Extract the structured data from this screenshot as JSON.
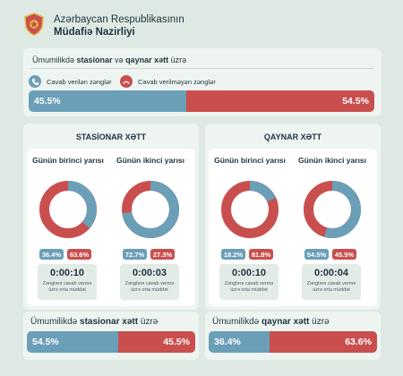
{
  "header": {
    "line1": "Azərbaycan Respublikasının",
    "line2": "Müdafiə Nazirliyi"
  },
  "colors": {
    "blue": "#6b9fb8",
    "red": "#c94f4f",
    "text": "#1f3340"
  },
  "overall": {
    "title_prefix": "Ümumilikdə ",
    "title_bold1": "stasionar",
    "title_mid": " və ",
    "title_bold2": "qaynar xətt",
    "title_suffix": " üzrə",
    "legend_answered": "Cavab verilən zənglər",
    "legend_unanswered": "Cavab verilməyən zənglər",
    "answered_pct": "45.5%",
    "unanswered_pct": "54.5%",
    "answered_value": 45.5,
    "unanswered_value": 54.5
  },
  "stationary": {
    "title": "STASİONAR XƏTT",
    "first": {
      "title": "Günün birinci yarısı",
      "blue_pct": "36.4%",
      "red_pct": "63.6%",
      "blue_value": 36.4,
      "time": "0:00:10",
      "time_label": "Zənglərə cavab vermə üzrə orta müddət"
    },
    "second": {
      "title": "Günün ikinci yarısı",
      "blue_pct": "72.7%",
      "red_pct": "27.3%",
      "blue_value": 72.7,
      "time": "0:00:03",
      "time_label": "Zənglərə cavab vermə üzrə orta müddət"
    }
  },
  "hotline": {
    "title": "QAYNAR XƏTT",
    "first": {
      "title": "Günün birinci yarısı",
      "blue_pct": "18.2%",
      "red_pct": "81.8%",
      "blue_value": 18.2,
      "time": "0:00:10",
      "time_label": "Zənglərə cavab vermə üzrə orta müddət"
    },
    "second": {
      "title": "Günün ikinci yarısı",
      "blue_pct": "54.5%",
      "red_pct": "45.5%",
      "blue_value": 54.5,
      "time": "0:00:04",
      "time_label": "Zənglərə cavab vermə üzrə orta müddət"
    }
  },
  "bottom_stationary": {
    "prefix": "Ümumilikdə ",
    "bold": "stasionar xətt",
    "suffix": " üzrə",
    "blue_pct": "54.5%",
    "red_pct": "45.5%",
    "blue_value": 54.5
  },
  "bottom_hotline": {
    "prefix": "Ümumilikdə ",
    "bold": "qaynar xətt",
    "suffix": " üzrə",
    "blue_pct": "36.4%",
    "red_pct": "63.6%",
    "blue_value": 36.4
  }
}
